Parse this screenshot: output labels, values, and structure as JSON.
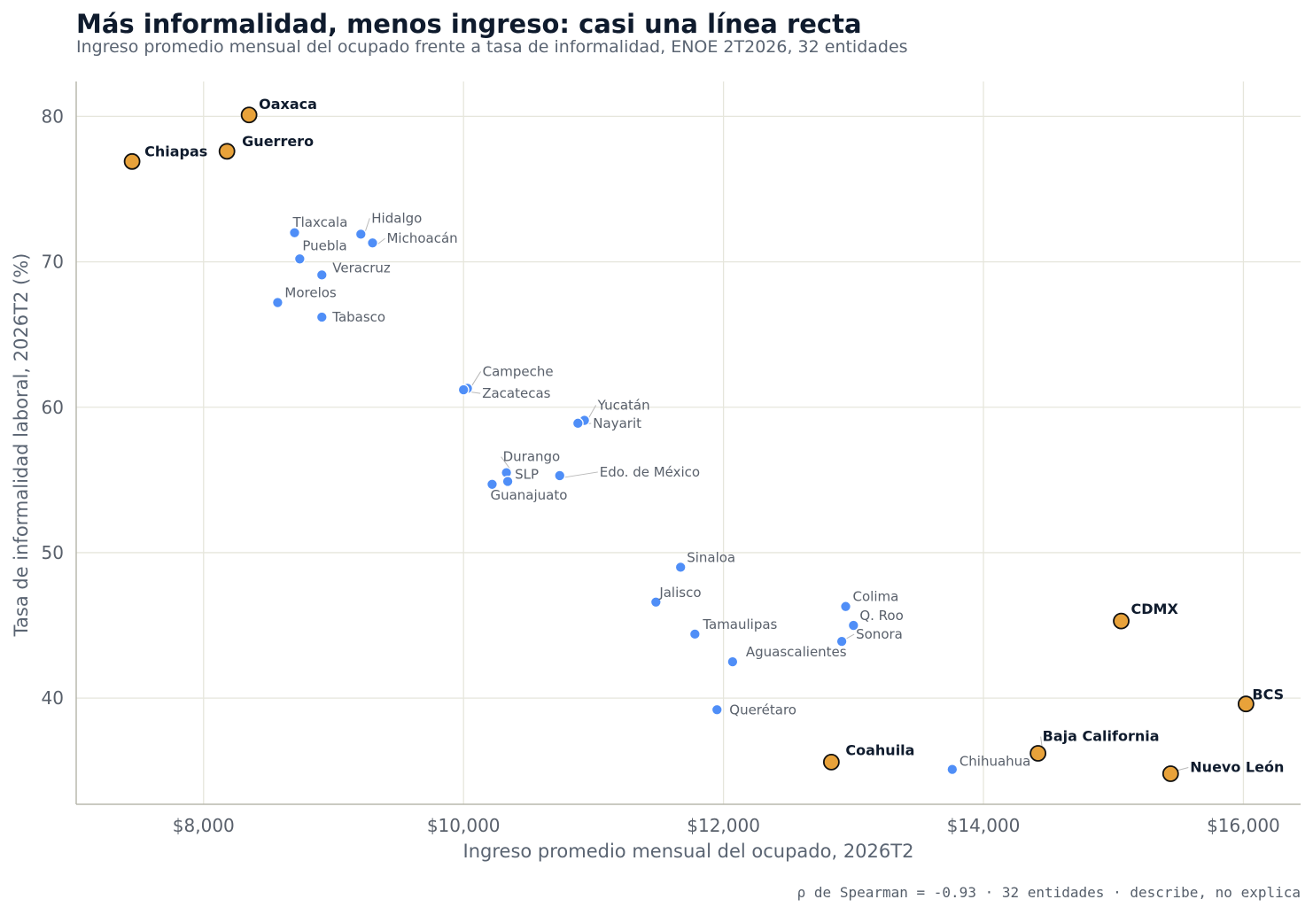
{
  "title": "Más informalidad, menos ingreso: casi una línea recta",
  "subtitle": "Ingreso promedio mensual del ocupado frente a tasa de informalidad, ENOE 2T2026, 32 entidades",
  "footnote": "ρ de Spearman = -0.93 · 32 entidades · describe, no explica",
  "colors": {
    "regular": "#4f8ef7",
    "highlight": "#e8a23a",
    "highlight_stroke": "#111111",
    "grid": "#e6e6dc",
    "axis": "#b8b8ad"
  },
  "chart_data": {
    "type": "scatter",
    "xlabel": "Ingreso promedio mensual del ocupado, 2026T2",
    "ylabel": "Tasa de informalidad laboral, 2026T2 (%)",
    "xlim": [
      7020,
      16440
    ],
    "ylim": [
      32.7,
      82.4
    ],
    "xticks": [
      8000,
      10000,
      12000,
      14000,
      16000
    ],
    "xtick_labels": [
      "$8,000",
      "$10,000",
      "$12,000",
      "$14,000",
      "$16,000"
    ],
    "yticks": [
      40,
      50,
      60,
      70,
      80
    ],
    "yticks_labels": [
      "40",
      "50",
      "60",
      "70",
      "80"
    ],
    "grid": true,
    "points": [
      {
        "name": "Oaxaca",
        "x": 8350,
        "y": 80.1,
        "highlight": true
      },
      {
        "name": "Chiapas",
        "x": 7450,
        "y": 76.9,
        "highlight": true
      },
      {
        "name": "Guerrero",
        "x": 8180,
        "y": 77.6,
        "highlight": true
      },
      {
        "name": "Tlaxcala",
        "x": 8700,
        "y": 72.0,
        "highlight": false
      },
      {
        "name": "Hidalgo",
        "x": 9210,
        "y": 71.9,
        "highlight": false
      },
      {
        "name": "Michoacán",
        "x": 9300,
        "y": 71.3,
        "highlight": false
      },
      {
        "name": "Puebla",
        "x": 8740,
        "y": 70.2,
        "highlight": false
      },
      {
        "name": "Veracruz",
        "x": 8910,
        "y": 69.1,
        "highlight": false
      },
      {
        "name": "Morelos",
        "x": 8570,
        "y": 67.2,
        "highlight": false
      },
      {
        "name": "Tabasco",
        "x": 8910,
        "y": 66.2,
        "highlight": false
      },
      {
        "name": "Campeche",
        "x": 10030,
        "y": 61.3,
        "highlight": false
      },
      {
        "name": "Zacatecas",
        "x": 10000,
        "y": 61.2,
        "highlight": false
      },
      {
        "name": "Yucatán",
        "x": 10930,
        "y": 59.1,
        "highlight": false
      },
      {
        "name": "Nayarit",
        "x": 10880,
        "y": 58.9,
        "highlight": false
      },
      {
        "name": "Durango",
        "x": 10330,
        "y": 55.5,
        "highlight": false
      },
      {
        "name": "SLP",
        "x": 10340,
        "y": 54.9,
        "highlight": false
      },
      {
        "name": "Guanajuato",
        "x": 10220,
        "y": 54.7,
        "highlight": false
      },
      {
        "name": "Edo. de México",
        "x": 10740,
        "y": 55.3,
        "highlight": false
      },
      {
        "name": "Sinaloa",
        "x": 11670,
        "y": 49.0,
        "highlight": false
      },
      {
        "name": "Jalisco",
        "x": 11480,
        "y": 46.6,
        "highlight": false
      },
      {
        "name": "Tamaulipas",
        "x": 11780,
        "y": 44.4,
        "highlight": false
      },
      {
        "name": "Aguascalientes",
        "x": 12070,
        "y": 42.5,
        "highlight": false
      },
      {
        "name": "Querétaro",
        "x": 11950,
        "y": 39.2,
        "highlight": false
      },
      {
        "name": "Colima",
        "x": 12940,
        "y": 46.3,
        "highlight": false
      },
      {
        "name": "Q. Roo",
        "x": 13000,
        "y": 45.0,
        "highlight": false
      },
      {
        "name": "Sonora",
        "x": 12910,
        "y": 43.9,
        "highlight": false
      },
      {
        "name": "CDMX",
        "x": 15060,
        "y": 45.3,
        "highlight": true
      },
      {
        "name": "BCS",
        "x": 16020,
        "y": 39.6,
        "highlight": true
      },
      {
        "name": "Baja California",
        "x": 14420,
        "y": 36.2,
        "highlight": true
      },
      {
        "name": "Nuevo León",
        "x": 15440,
        "y": 34.8,
        "highlight": true
      },
      {
        "name": "Coahuila",
        "x": 12830,
        "y": 35.6,
        "highlight": true
      },
      {
        "name": "Chihuahua",
        "x": 13760,
        "y": 35.1,
        "highlight": false
      }
    ]
  }
}
